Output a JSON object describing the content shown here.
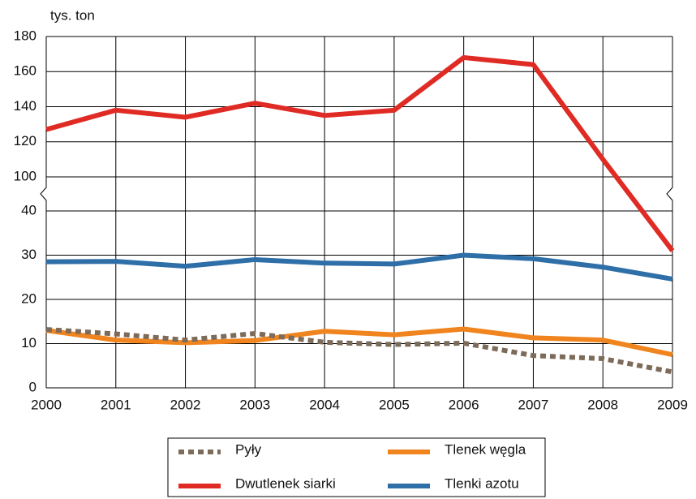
{
  "chart_data": {
    "type": "line",
    "y_label": "tys. ton",
    "categories": [
      "2000",
      "2001",
      "2002",
      "2003",
      "2004",
      "2005",
      "2006",
      "2007",
      "2008",
      "2009"
    ],
    "series": [
      {
        "name": "Pyły",
        "color": "#7d6b5a",
        "dashed": true,
        "values": [
          13.2,
          12.2,
          10.8,
          12.3,
          10.3,
          9.8,
          10.1,
          7.3,
          6.6,
          3.6
        ]
      },
      {
        "name": "Dwutlenek siarki",
        "color": "#e02b25",
        "values": [
          127,
          138,
          134,
          142,
          135,
          138,
          168,
          164,
          110,
          31
        ]
      },
      {
        "name": "Tlenek węgla",
        "color": "#f0841e",
        "values": [
          13,
          10.8,
          10.2,
          10.7,
          12.8,
          12,
          13.3,
          11.3,
          10.8,
          7.5
        ]
      },
      {
        "name": "Tlenki azotu",
        "color": "#2f6fa8",
        "values": [
          28.5,
          28.6,
          27.5,
          29,
          28.2,
          28,
          30,
          29.2,
          27.3,
          24.6
        ]
      }
    ],
    "ylim": [
      0,
      180
    ],
    "axis_break": [
      40,
      100
    ],
    "yticks": [
      0,
      10,
      20,
      30,
      40,
      100,
      120,
      140,
      160,
      180
    ],
    "grid": true
  }
}
